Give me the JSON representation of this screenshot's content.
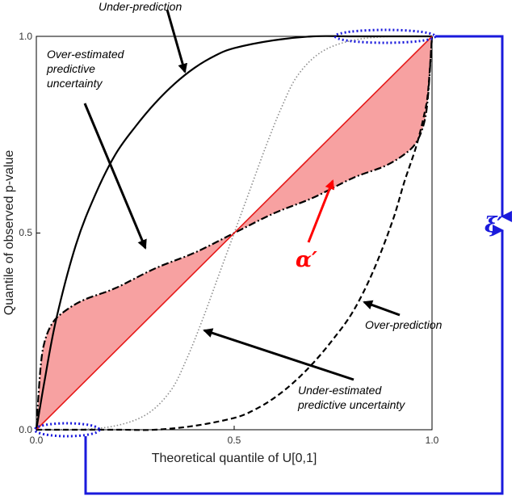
{
  "chart_data": {
    "type": "line",
    "title": "",
    "xlabel": "Theoretical quantile of U[0,1]",
    "ylabel": "Quantile of observed p-value",
    "xlim": [
      0,
      1
    ],
    "ylim": [
      0,
      1
    ],
    "xticks": [
      "0.0",
      "0.5",
      "1.0"
    ],
    "yticks": [
      "0.0",
      "0.5",
      "1.0"
    ],
    "grid": false,
    "series": [
      {
        "style": "dotted-grey",
        "color": "#8c8c8c",
        "points": [
          [
            0,
            0
          ],
          [
            0.1,
            0.0
          ],
          [
            0.2,
            0.01
          ],
          [
            0.28,
            0.04
          ],
          [
            0.34,
            0.1
          ],
          [
            0.38,
            0.18
          ],
          [
            0.42,
            0.28
          ],
          [
            0.46,
            0.39
          ],
          [
            0.5,
            0.5
          ],
          [
            0.54,
            0.61
          ],
          [
            0.58,
            0.72
          ],
          [
            0.62,
            0.82
          ],
          [
            0.66,
            0.9
          ],
          [
            0.72,
            0.96
          ],
          [
            0.8,
            0.99
          ],
          [
            0.9,
            1.0
          ],
          [
            1,
            1
          ]
        ]
      },
      {
        "style": "solid-black",
        "color": "#000000",
        "points": [
          [
            0,
            0
          ],
          [
            0.02,
            0.12
          ],
          [
            0.05,
            0.28
          ],
          [
            0.1,
            0.47
          ],
          [
            0.15,
            0.6
          ],
          [
            0.2,
            0.7
          ],
          [
            0.25,
            0.77
          ],
          [
            0.3,
            0.83
          ],
          [
            0.35,
            0.88
          ],
          [
            0.4,
            0.92
          ],
          [
            0.45,
            0.95
          ],
          [
            0.5,
            0.97
          ],
          [
            0.6,
            0.99
          ],
          [
            0.7,
            1.0
          ],
          [
            0.8,
            1.0
          ],
          [
            1,
            1
          ]
        ]
      },
      {
        "style": "dashed-black",
        "color": "#000000",
        "points": [
          [
            0,
            0
          ],
          [
            0.2,
            0.0
          ],
          [
            0.3,
            0.0
          ],
          [
            0.4,
            0.01
          ],
          [
            0.5,
            0.03
          ],
          [
            0.55,
            0.05
          ],
          [
            0.6,
            0.08
          ],
          [
            0.65,
            0.12
          ],
          [
            0.7,
            0.17
          ],
          [
            0.75,
            0.23
          ],
          [
            0.8,
            0.3
          ],
          [
            0.85,
            0.4
          ],
          [
            0.9,
            0.53
          ],
          [
            0.93,
            0.63
          ],
          [
            0.96,
            0.72
          ],
          [
            0.98,
            0.8
          ],
          [
            0.99,
            0.86
          ],
          [
            1.0,
            1.0
          ]
        ]
      },
      {
        "style": "dashdot-black",
        "color": "#000000",
        "points": [
          [
            0,
            0
          ],
          [
            0.01,
            0.15
          ],
          [
            0.02,
            0.22
          ],
          [
            0.04,
            0.27
          ],
          [
            0.07,
            0.3
          ],
          [
            0.12,
            0.33
          ],
          [
            0.2,
            0.36
          ],
          [
            0.3,
            0.41
          ],
          [
            0.4,
            0.45
          ],
          [
            0.5,
            0.5
          ],
          [
            0.6,
            0.55
          ],
          [
            0.7,
            0.59
          ],
          [
            0.8,
            0.64
          ],
          [
            0.88,
            0.67
          ],
          [
            0.93,
            0.7
          ],
          [
            0.96,
            0.73
          ],
          [
            0.98,
            0.78
          ],
          [
            0.99,
            0.85
          ],
          [
            1.0,
            1.0
          ]
        ]
      },
      {
        "style": "solid-red",
        "color": "#e61919",
        "points": [
          [
            0,
            0
          ],
          [
            1,
            1
          ]
        ]
      }
    ],
    "shaded_area_color": "#f7a1a1",
    "annotations": [
      {
        "text": "Under-prediction",
        "arrow_to": [
          0.38,
          0.9
        ]
      },
      {
        "text": "Over-estimated predictive uncertainty",
        "arrow_to": [
          0.28,
          0.45
        ]
      },
      {
        "text": "Over-prediction",
        "arrow_to": [
          0.82,
          0.32
        ]
      },
      {
        "text": "Under-estimated predictive uncertainty",
        "arrow_to": [
          0.43,
          0.26
        ]
      },
      {
        "text": "α′",
        "color": "#ff0000",
        "arrow_to": [
          0.76,
          0.63
        ]
      },
      {
        "text": "ξ′",
        "color": "#1a1adc"
      }
    ]
  },
  "labels": {
    "under_prediction": "Under-prediction",
    "over_estimated_1": "Over-estimated",
    "over_estimated_2": "predictive",
    "over_estimated_3": "uncertainty",
    "over_prediction": "Over-prediction",
    "under_estimated_1": "Under-estimated",
    "under_estimated_2": "predictive uncertainty",
    "alpha": "α′",
    "xi": "ξ′"
  },
  "colors": {
    "blue": "#1a1adc",
    "red": "#ff0000"
  }
}
